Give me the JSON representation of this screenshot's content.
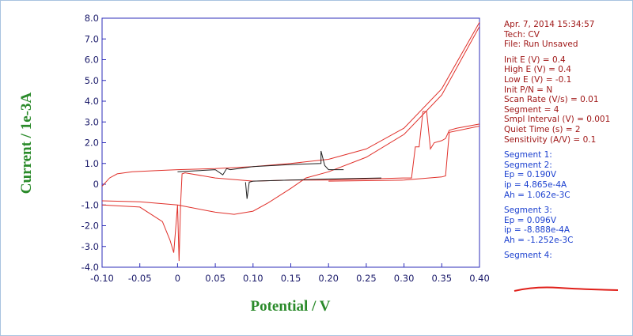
{
  "chart_data": {
    "type": "line",
    "x_label": "Potential / V",
    "y_label": "Current / 1e-3A",
    "xlim": [
      -0.1,
      0.4
    ],
    "ylim": [
      -4,
      8
    ],
    "xticks": [
      {
        "value": -0.1,
        "label": "-0.10"
      },
      -0.05,
      0,
      0.05,
      {
        "value": 0.1,
        "label": "0.10"
      },
      0.15,
      {
        "value": 0.2,
        "label": "0.20"
      },
      0.25,
      {
        "value": 0.3,
        "label": "0.30"
      },
      0.35,
      {
        "value": 0.4,
        "label": "0.40"
      }
    ],
    "yticks": [
      {
        "value": -4,
        "label": "-4.0"
      },
      {
        "value": -3,
        "label": "-3.0"
      },
      {
        "value": -2,
        "label": "-2.0"
      },
      {
        "value": -1,
        "label": "-1.0"
      },
      0,
      {
        "value": 1,
        "label": "1.0"
      },
      {
        "value": 2,
        "label": "2.0"
      },
      {
        "value": 3,
        "label": "3.0"
      },
      {
        "value": 4,
        "label": "4.0"
      },
      {
        "value": 5,
        "label": "5.0"
      },
      {
        "value": 6,
        "label": "6.0"
      },
      {
        "value": 7,
        "label": "7.0"
      },
      {
        "value": 8,
        "label": "8.0"
      }
    ],
    "series": [
      {
        "color": "#e0302a",
        "x": [
          -0.1,
          -0.09,
          -0.08,
          -0.06,
          -0.03,
          0,
          0.05,
          0.1,
          0.15,
          0.2,
          0.25,
          0.3,
          0.35,
          0.4
        ],
        "values": [
          -0.1,
          0.3,
          0.5,
          0.6,
          0.65,
          0.7,
          0.75,
          0.85,
          1.0,
          1.2,
          1.7,
          2.7,
          4.6,
          7.8
        ]
      },
      {
        "color": "#e0302a",
        "x": [
          0.4,
          0.35,
          0.3,
          0.25,
          0.2,
          0.17,
          0.15,
          0.12,
          0.1,
          0.075,
          0.05,
          0,
          -0.05,
          -0.1
        ],
        "values": [
          7.6,
          4.3,
          2.4,
          1.3,
          0.6,
          0.3,
          -0.2,
          -0.9,
          -1.3,
          -1.45,
          -1.35,
          -1.0,
          -0.85,
          -0.8
        ]
      },
      {
        "color": "#e0302a",
        "x": [
          -0.1,
          -0.05,
          -0.02,
          -0.01,
          -0.005,
          0,
          0.002,
          0.004,
          0.006,
          0.01,
          0.05,
          0.1,
          0.15,
          0.2
        ],
        "values": [
          -1.0,
          -1.1,
          -1.8,
          -2.7,
          -3.3,
          -1.0,
          -3.7,
          -1.0,
          0.5,
          0.55,
          0.3,
          0.15,
          0.2,
          0.2
        ]
      },
      {
        "color": "#e0302a",
        "x": [
          0.2,
          0.25,
          0.3,
          0.31,
          0.315,
          0.32,
          0.325,
          0.33,
          0.335,
          0.34,
          0.35,
          0.355,
          0.36,
          0.37,
          0.4
        ],
        "values": [
          0.2,
          0.25,
          0.3,
          0.3,
          1.8,
          1.8,
          3.5,
          3.5,
          1.7,
          2.0,
          2.1,
          2.2,
          2.6,
          2.7,
          2.9
        ]
      },
      {
        "color": "#e0302a",
        "x": [
          0.2,
          0.3,
          0.35,
          0.355,
          0.36,
          0.4
        ],
        "values": [
          0.15,
          0.2,
          0.35,
          0.4,
          2.5,
          2.8
        ]
      },
      {
        "color": "#202020",
        "x": [
          0,
          0.05,
          0.06,
          0.065,
          0.07,
          0.1,
          0.15,
          0.19,
          0.19,
          0.195,
          0.2,
          0.22
        ],
        "values": [
          0.6,
          0.7,
          0.45,
          0.75,
          0.7,
          0.85,
          0.95,
          1.0,
          1.6,
          0.9,
          0.7,
          0.7
        ]
      },
      {
        "color": "#202020",
        "x": [
          0.09,
          0.092,
          0.095,
          0.1,
          0.15,
          0.2,
          0.27
        ],
        "values": [
          0.1,
          -0.7,
          0.1,
          0.15,
          0.2,
          0.25,
          0.3
        ]
      }
    ]
  },
  "info_panel": {
    "header": [
      "Apr. 7, 2014   15:34:57",
      "Tech: CV",
      "File: Run Unsaved"
    ],
    "parameters": [
      "Init E (V) = 0.4",
      "High E (V) = 0.4",
      "Low E (V) = -0.1",
      "Init P/N = N",
      "Scan Rate (V/s) = 0.01",
      "Segment = 4",
      "Smpl Interval (V) = 0.001",
      "Quiet Time (s) = 2",
      "Sensitivity (A/V) = 0.1"
    ],
    "segment_1_2": [
      "Segment 1:",
      "Segment 2:",
      "Ep = 0.190V",
      "ip = 4.865e-4A",
      "Ah = 1.062e-3C"
    ],
    "segment_3": [
      "Segment 3:",
      "Ep = 0.096V",
      "ip = -8.888e-4A",
      "Ah = -1.252e-3C"
    ],
    "segment_4": [
      "Segment 4:"
    ]
  }
}
